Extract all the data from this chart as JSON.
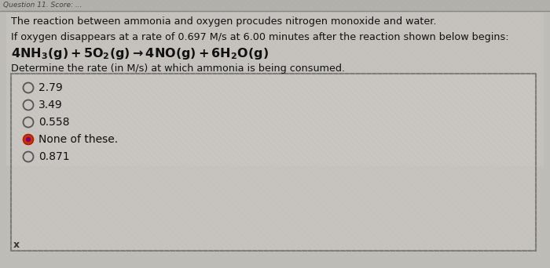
{
  "bg_color": "#bfbdb8",
  "box_bg": "#d0cdc8",
  "line1": "The reaction between ammonia and oxygen procudes nitrogen monoxide and water.",
  "line2": "If oxygen disappears at a rate of 0.697 M/s at 6.00 minutes after the reaction shown below begins:",
  "line3": "Determine the rate (in M/s) at which ammonia is being consumed.",
  "options": [
    "2.79",
    "3.49",
    "0.558",
    "None of these.",
    "0.871"
  ],
  "selected_option": 3,
  "footer": "x",
  "box_border": "#444444",
  "text_color": "#111111",
  "radio_color": "#555555",
  "selected_fill": "#cc3300",
  "selected_dot": "#800080",
  "header_line_color": "#666660",
  "top_bg": "#a8a8a0"
}
